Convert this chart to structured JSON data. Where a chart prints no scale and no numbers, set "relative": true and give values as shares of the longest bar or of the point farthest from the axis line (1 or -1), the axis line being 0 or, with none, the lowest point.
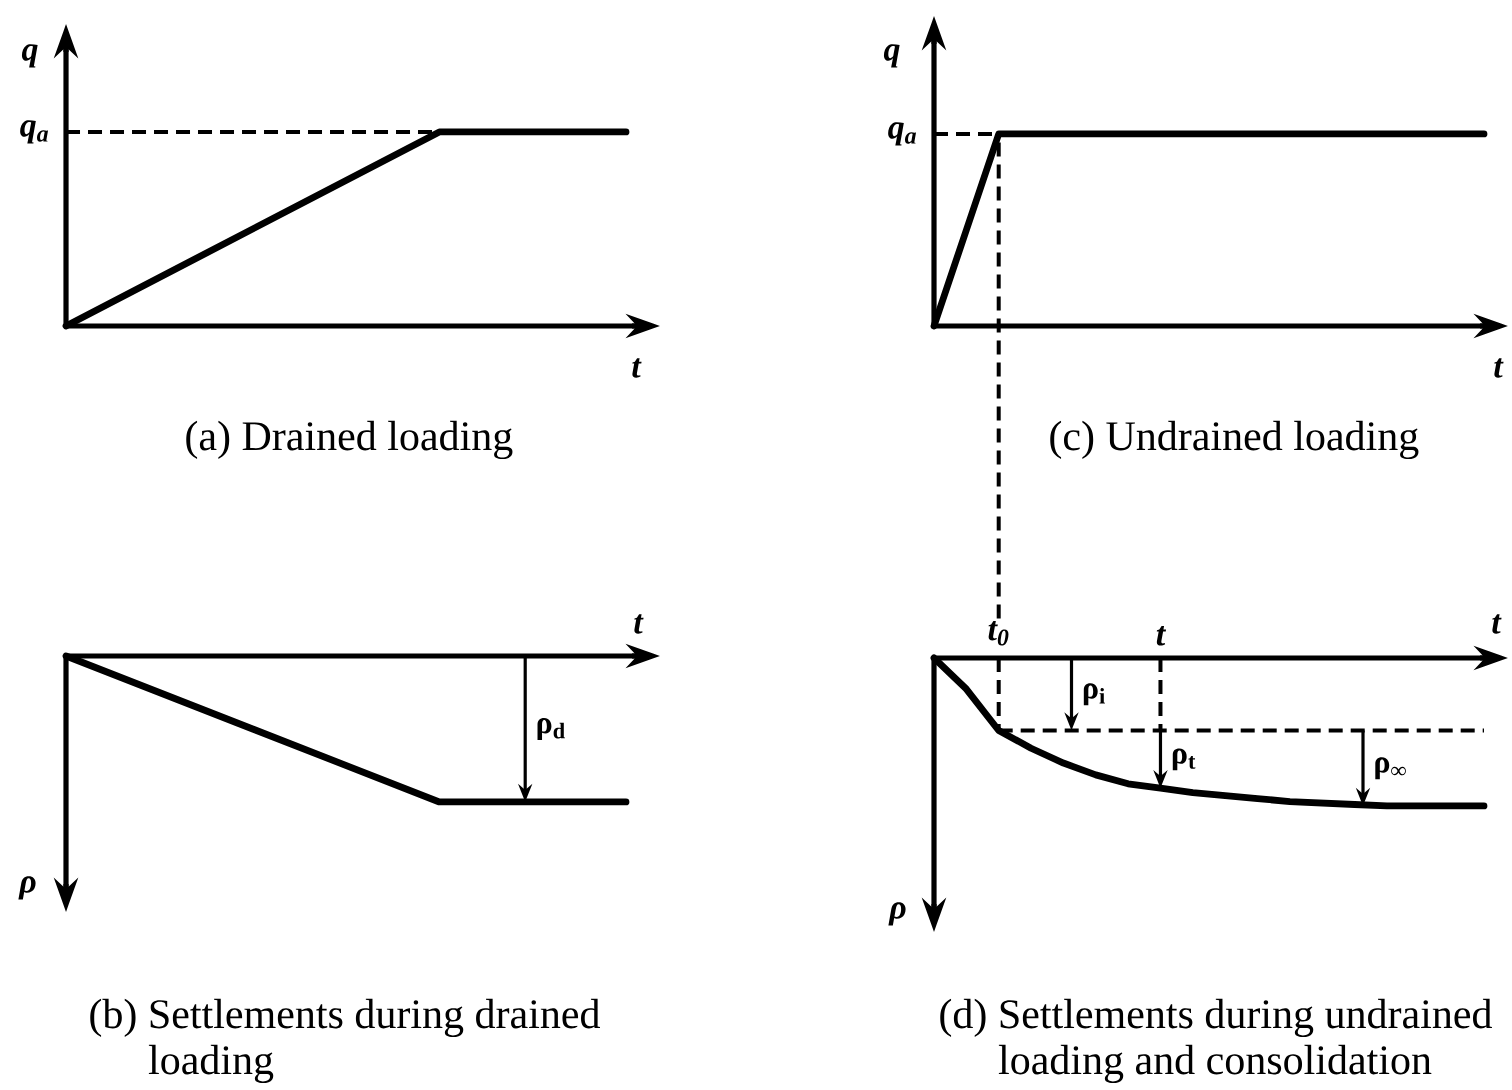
{
  "chart_data": [
    {
      "type": "line",
      "title": "(a) Drained loading",
      "xlabel": "t",
      "ylabel": "q",
      "categories": [
        null,
        null,
        null,
        null
      ],
      "values": [
        0,
        0.5,
        1,
        1
      ],
      "color": "#000000",
      "relative": true,
      "ref_lines": [
        {
          "axis": "y",
          "value": 1,
          "label": "q$_{a}$",
          "line_style": "dashed"
        }
      ]
    },
    {
      "type": "line",
      "title": "(c) Undrained loading",
      "xlabel": "t",
      "ylabel": "q",
      "categories": [
        null,
        null,
        null,
        null,
        null,
        null,
        null,
        null,
        null,
        null,
        null,
        null,
        null,
        null,
        null,
        null,
        null,
        null
      ],
      "values": [
        0,
        0.5,
        1,
        1,
        1,
        1,
        1,
        1,
        1,
        1,
        1,
        1,
        1,
        1,
        1,
        1,
        1,
        1
      ],
      "color": "#000000",
      "relative": true,
      "ref_lines": [
        {
          "axis": "y",
          "value": 1,
          "label": "q$_{a}$",
          "line_style": "dashed"
        }
      ]
    },
    {
      "type": "line",
      "title": "(b) Settlements during drained loading",
      "xlabel": "t",
      "ylabel": "ρ",
      "categories": [
        null,
        null,
        null,
        null
      ],
      "values": [
        0,
        -0.5,
        -1,
        -1
      ],
      "color": "#000000",
      "relative": true,
      "annotations": [
        {
          "text": "ρ$_{d}$",
          "y": -1
        }
      ]
    },
    {
      "type": "line",
      "title": "(d) Settlements during undrained loading and consolidation",
      "xlabel": "t",
      "ylabel": "ρ",
      "categories": [
        null,
        null,
        "t$_{0}$",
        null,
        null,
        null,
        null,
        "t",
        null,
        null,
        null,
        null,
        null,
        null,
        null,
        null,
        null,
        null
      ],
      "values": [
        0,
        -0.21,
        -0.49,
        -0.61,
        -0.71,
        -0.79,
        -0.85,
        -0.88,
        -0.91,
        -0.93,
        -0.95,
        -0.97,
        -0.98,
        -0.99,
        -1,
        -1,
        -1,
        -1
      ],
      "color": "#000000",
      "relative": true,
      "ref_lines": [
        {
          "axis": "y",
          "value": -0.49,
          "line_style": "dashed"
        },
        {
          "axis": "x",
          "value": "t$_{0}$",
          "line_style": "dashed"
        },
        {
          "axis": "x",
          "value": "t",
          "line_style": "dashed"
        }
      ],
      "annotations": [
        {
          "text": "ρ$_{i}$",
          "y": -0.49
        },
        {
          "text": "ρ$_{t}$",
          "x": "t",
          "y": -0.88
        },
        {
          "text": "ρ$_{∞}$",
          "y": -1
        }
      ]
    }
  ]
}
